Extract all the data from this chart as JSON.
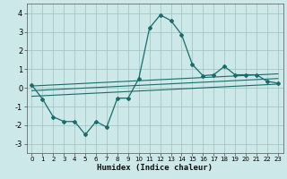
{
  "xlabel": "Humidex (Indice chaleur)",
  "background_color": "#cce8e8",
  "grid_color": "#9fbfbf",
  "line_color": "#1a6b6b",
  "xlim": [
    -0.5,
    23.5
  ],
  "ylim": [
    -3.5,
    4.5
  ],
  "yticks": [
    -3,
    -2,
    -1,
    0,
    1,
    2,
    3,
    4
  ],
  "xticks": [
    0,
    1,
    2,
    3,
    4,
    5,
    6,
    7,
    8,
    9,
    10,
    11,
    12,
    13,
    14,
    15,
    16,
    17,
    18,
    19,
    20,
    21,
    22,
    23
  ],
  "line1_x": [
    0,
    1,
    2,
    3,
    4,
    5,
    6,
    7,
    8,
    9,
    10,
    11,
    12,
    13,
    14,
    15,
    16,
    17,
    18,
    19,
    20,
    21,
    22,
    23
  ],
  "line1_y": [
    0.15,
    -0.6,
    -1.55,
    -1.8,
    -1.8,
    -2.5,
    -1.8,
    -2.1,
    -0.55,
    -0.55,
    0.5,
    3.2,
    3.9,
    3.6,
    2.85,
    1.25,
    0.65,
    0.7,
    1.15,
    0.7,
    0.7,
    0.7,
    0.35,
    0.25
  ],
  "line2_x": [
    0,
    23
  ],
  "line2_y": [
    -0.45,
    0.2
  ],
  "line3_x": [
    0,
    23
  ],
  "line3_y": [
    -0.15,
    0.5
  ],
  "line4_x": [
    0,
    23
  ],
  "line4_y": [
    0.1,
    0.75
  ]
}
